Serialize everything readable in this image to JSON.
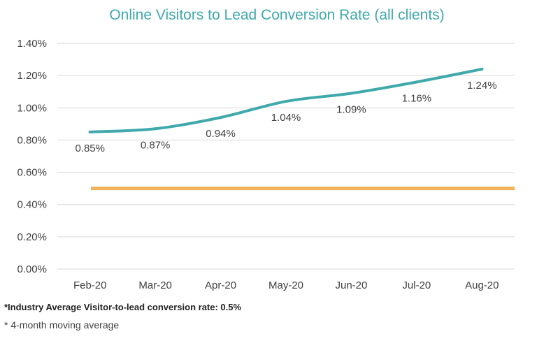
{
  "chart_data": {
    "type": "line",
    "title": "Online Visitors to Lead Conversion Rate (all clients)",
    "xlabel": "",
    "ylabel": "",
    "categories": [
      "Feb-20",
      "Mar-20",
      "Apr-20",
      "May-20",
      "Jun-20",
      "Jul-20",
      "Aug-20"
    ],
    "series": [
      {
        "values": [
          0.85,
          0.87,
          0.94,
          1.04,
          1.09,
          1.16,
          1.24
        ],
        "labels": [
          "0.85%",
          "0.87%",
          "0.94%",
          "1.04%",
          "1.09%",
          "1.16%",
          "1.24%"
        ],
        "color": "#3fa9ab"
      }
    ],
    "reference_line": {
      "value": 0.5,
      "color": "#f2b25a"
    },
    "ylim": [
      0,
      1.4
    ],
    "yticks": [
      "0.00%",
      "0.20%",
      "0.40%",
      "0.60%",
      "0.80%",
      "1.00%",
      "1.20%",
      "1.40%"
    ],
    "grid": true,
    "legend": "none"
  },
  "notes": {
    "industry_average": "*Industry Average Visitor-to-lead conversion rate: 0.5%",
    "moving_average": "* 4-month moving average"
  }
}
